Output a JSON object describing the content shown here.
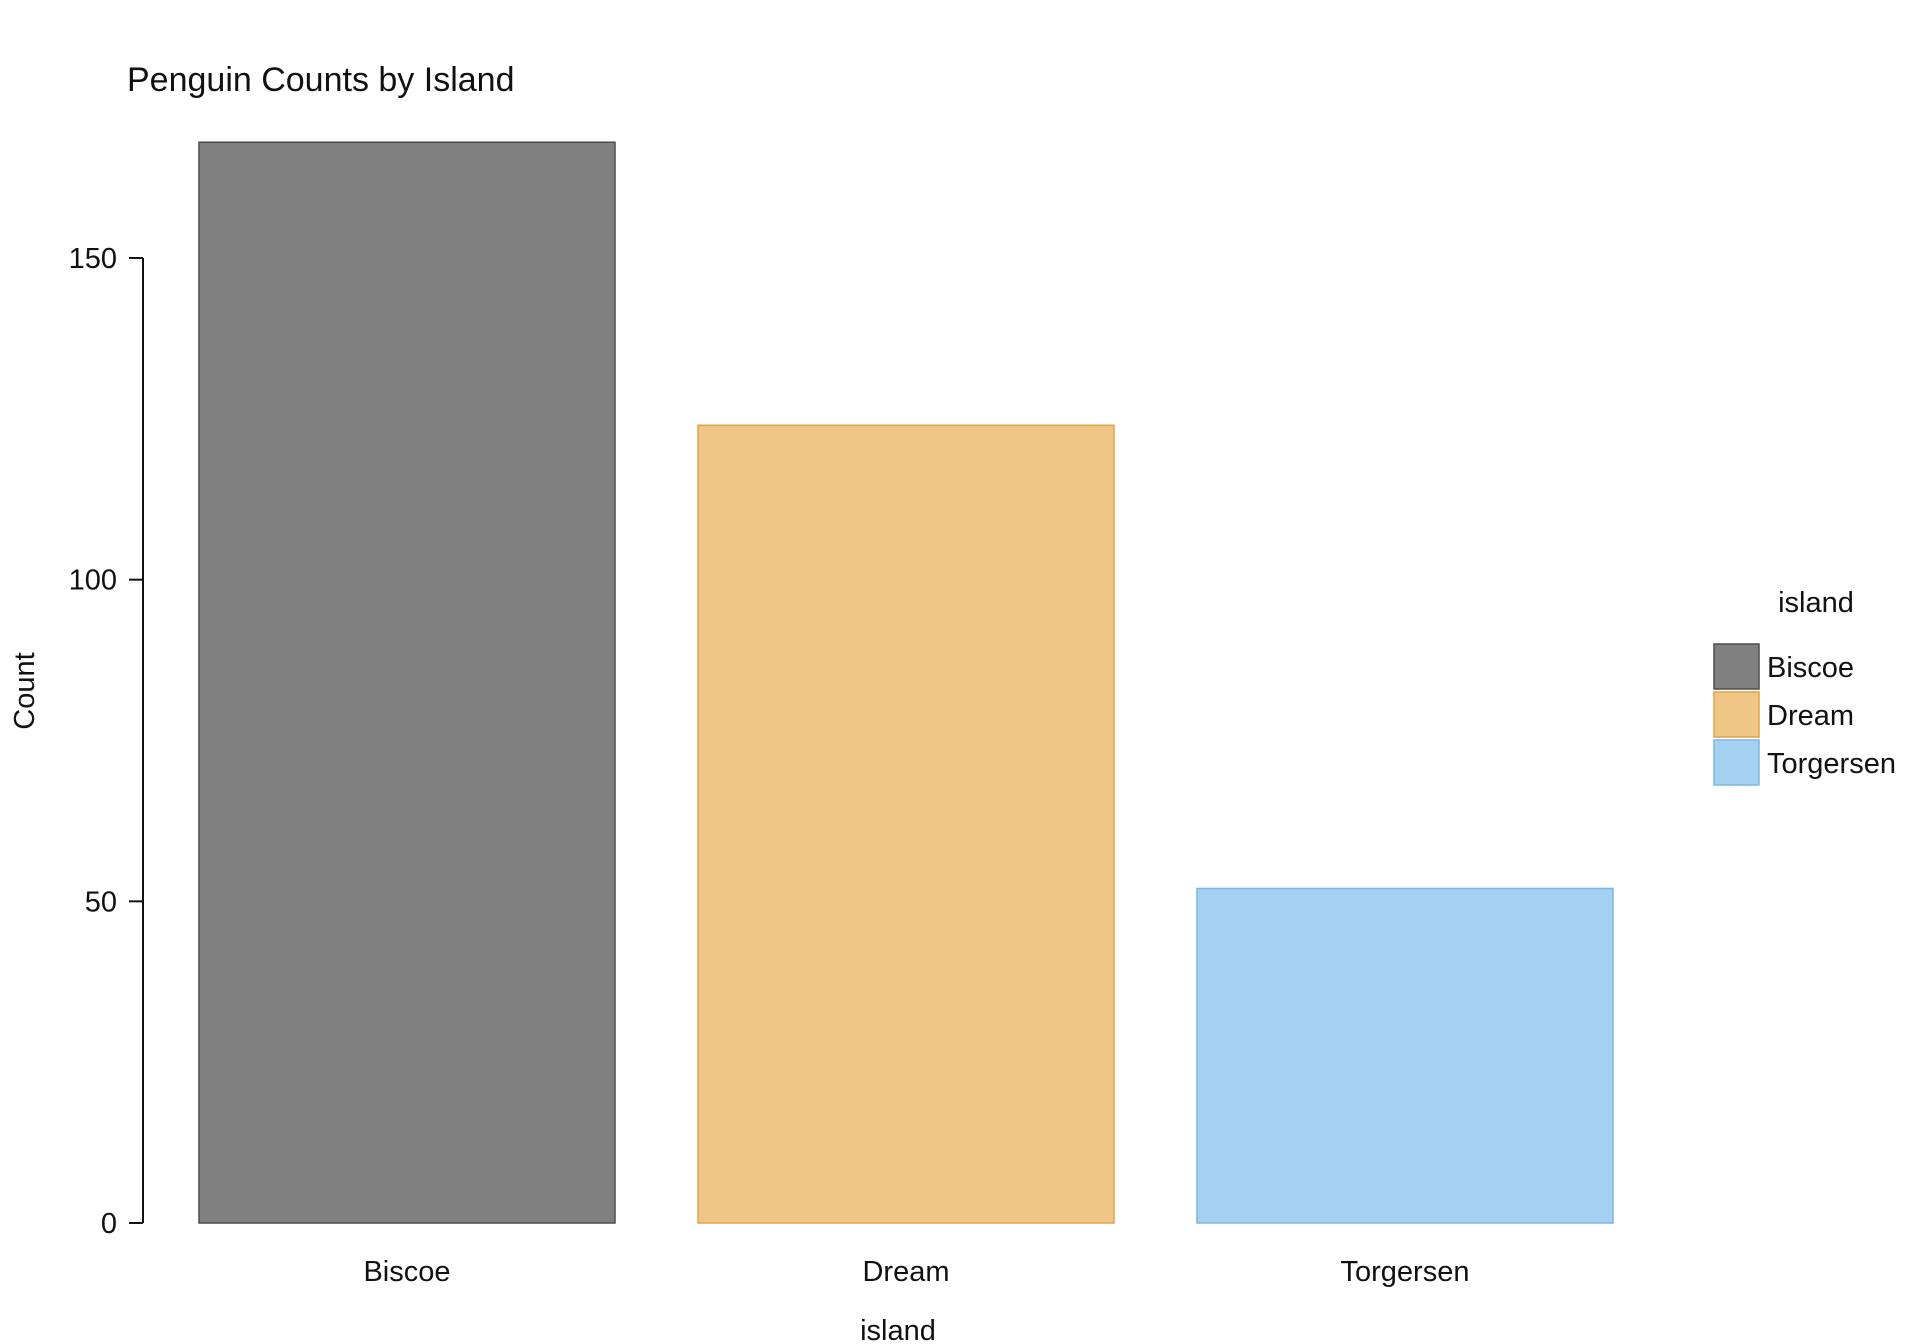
{
  "chart_data": {
    "type": "bar",
    "title": "Penguin Counts by Island",
    "xlabel": "island",
    "ylabel": "Count",
    "categories": [
      "Biscoe",
      "Dream",
      "Torgersen"
    ],
    "values": [
      168,
      124,
      52
    ],
    "ylim": [
      0,
      168
    ],
    "yticks": [
      0,
      50,
      100,
      150
    ],
    "grid": false,
    "legend": {
      "title": "island",
      "position": "right",
      "entries": [
        "Biscoe",
        "Dream",
        "Torgersen"
      ]
    },
    "colors": {
      "fills": [
        "#808080",
        "#EFC686",
        "#A4D0F1"
      ],
      "strokes": [
        "#4D4D4D",
        "#E0A24A",
        "#7DB8E2"
      ]
    }
  }
}
